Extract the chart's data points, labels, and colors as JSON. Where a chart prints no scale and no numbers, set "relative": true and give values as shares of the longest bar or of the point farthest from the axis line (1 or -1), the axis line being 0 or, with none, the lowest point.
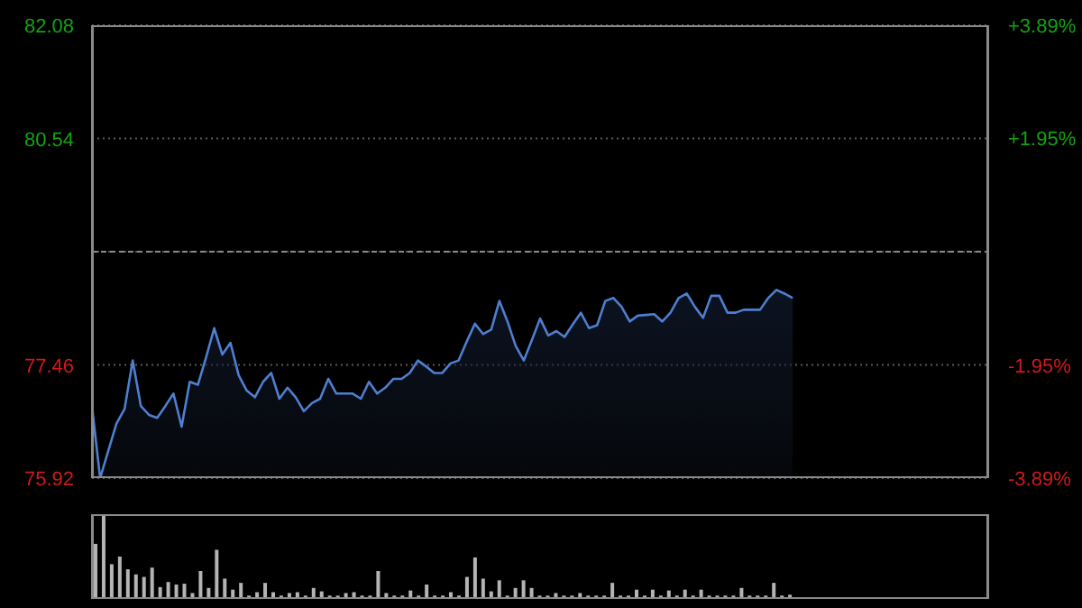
{
  "chart_data": [
    {
      "type": "area",
      "categories": [
        null,
        null,
        null,
        null,
        null,
        null,
        null,
        null,
        null,
        null,
        null,
        null,
        null,
        null,
        null,
        null,
        null,
        null,
        null,
        null,
        null,
        null,
        null,
        null,
        null,
        null,
        null,
        null,
        null,
        null,
        null,
        null,
        null,
        null,
        null,
        null,
        null,
        null,
        null,
        null,
        null,
        null,
        null,
        null,
        null,
        null,
        null,
        null,
        null,
        null,
        null,
        null,
        null,
        null,
        null,
        null,
        null,
        null,
        null,
        null,
        null,
        null,
        null,
        null,
        null,
        null,
        null,
        null,
        null,
        null,
        null,
        null,
        null,
        null,
        null,
        null,
        null,
        null,
        null,
        null,
        null,
        null,
        null,
        null,
        null,
        null,
        null
      ],
      "ylim": [
        75.92,
        82.08
      ],
      "yticks": [
        75.92,
        77.46,
        {
          "value": 79,
          "label": null
        },
        80.54,
        82.08
      ],
      "y2lim": [
        -3.89,
        3.89
      ],
      "y2ticks": [
        {
          "value": -3.89,
          "label": "-3.89%"
        },
        {
          "value": -1.95,
          "label": "-1.95%"
        },
        {
          "value": 0,
          "label": null
        },
        {
          "value": 1.95,
          "label": "+1.95%"
        },
        {
          "value": 3.89,
          "label": "+3.89%"
        }
      ],
      "tick_labels": "y",
      "grid": true,
      "ref_lines": [
        {
          "axis": "y",
          "value": 79,
          "color": "#8a8a8a",
          "line_style": "dashed"
        }
      ],
      "series": [
        {
          "color": "#4f7fd0",
          "values": [
            76.9,
            75.92,
            76.29,
            76.66,
            76.86,
            77.52,
            76.9,
            76.78,
            76.74,
            76.9,
            77.07,
            76.62,
            77.23,
            77.19,
            77.56,
            77.96,
            77.6,
            77.76,
            77.32,
            77.11,
            77.02,
            77.23,
            77.35,
            77.0,
            77.15,
            77.02,
            76.83,
            76.94,
            77.0,
            77.27,
            77.07,
            77.07,
            77.07,
            77.0,
            77.23,
            77.07,
            77.15,
            77.27,
            77.27,
            77.35,
            77.52,
            77.44,
            77.35,
            77.35,
            77.48,
            77.52,
            77.78,
            78.02,
            77.88,
            77.94,
            78.33,
            78.05,
            77.72,
            77.52,
            77.8,
            78.09,
            77.86,
            77.92,
            77.84,
            78.01,
            78.17,
            77.96,
            78.0,
            78.33,
            78.37,
            78.25,
            78.05,
            78.13,
            78.14,
            78.15,
            78.05,
            78.17,
            78.37,
            78.43,
            78.25,
            78.1,
            78.4,
            78.4,
            78.17,
            78.17,
            78.21,
            78.21,
            78.21,
            78.37,
            78.48,
            78.43,
            78.37
          ]
        }
      ]
    },
    {
      "type": "bar",
      "relative": true,
      "tick_labels": false,
      "categories": [
        null,
        null,
        null,
        null,
        null,
        null,
        null,
        null,
        null,
        null,
        null,
        null,
        null,
        null,
        null,
        null,
        null,
        null,
        null,
        null,
        null,
        null,
        null,
        null,
        null,
        null,
        null,
        null,
        null,
        null,
        null,
        null,
        null,
        null,
        null,
        null,
        null,
        null,
        null,
        null,
        null,
        null,
        null,
        null,
        null,
        null,
        null,
        null,
        null,
        null,
        null,
        null,
        null,
        null,
        null,
        null,
        null,
        null,
        null,
        null,
        null,
        null,
        null,
        null,
        null,
        null,
        null,
        null,
        null,
        null,
        null,
        null,
        null,
        null,
        null,
        null,
        null,
        null,
        null,
        null,
        null,
        null,
        null,
        null,
        null,
        null,
        null
      ],
      "series": [
        {
          "color": "#b4b4b4",
          "values": [
            0.65,
            1,
            0.41,
            0.5,
            0.35,
            0.29,
            0.26,
            0.37,
            0.14,
            0.2,
            0.17,
            0.18,
            0.07,
            0.33,
            0.13,
            0.58,
            0.24,
            0.11,
            0.19,
            0.04,
            0.08,
            0.19,
            0.08,
            0.04,
            0.07,
            0.08,
            0.04,
            0.13,
            0.09,
            0.04,
            0.04,
            0.07,
            0.08,
            0.04,
            0.04,
            0.33,
            0.07,
            0.04,
            0.04,
            0.1,
            0.04,
            0.17,
            0.04,
            0.04,
            0.08,
            0.04,
            0.26,
            0.49,
            0.24,
            0.09,
            0.22,
            0.04,
            0.13,
            0.22,
            0.13,
            0.04,
            0.04,
            0.07,
            0.04,
            0.04,
            0.07,
            0.04,
            0.04,
            0.04,
            0.19,
            0.04,
            0.04,
            0.11,
            0.04,
            0.11,
            0.04,
            0.1,
            0.04,
            0.11,
            0.04,
            0.11,
            0.04,
            0.04,
            0.04,
            0.04,
            0.13,
            0.04,
            0.04,
            0.04,
            0.19,
            0.04,
            0.05
          ]
        }
      ]
    }
  ]
}
